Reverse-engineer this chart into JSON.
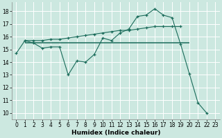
{
  "xlabel": "Humidex (Indice chaleur)",
  "bg_color": "#cce8e0",
  "line_color": "#1a6b5a",
  "grid_color": "#ffffff",
  "xlim": [
    -0.5,
    23.5
  ],
  "ylim": [
    9.5,
    18.7
  ],
  "xticks": [
    0,
    1,
    2,
    3,
    4,
    5,
    6,
    7,
    8,
    9,
    10,
    11,
    12,
    13,
    14,
    15,
    16,
    17,
    18,
    19,
    20,
    21,
    22,
    23
  ],
  "yticks": [
    10,
    11,
    12,
    13,
    14,
    15,
    16,
    17,
    18
  ],
  "series1_x": [
    0,
    1,
    2,
    3,
    4,
    5,
    6,
    7,
    8,
    9,
    10,
    11,
    12,
    13,
    14,
    15,
    16,
    17,
    18,
    19,
    20,
    21,
    22
  ],
  "series1_y": [
    14.7,
    15.7,
    15.5,
    15.1,
    15.2,
    15.2,
    13.0,
    14.1,
    14.0,
    14.6,
    15.9,
    15.7,
    16.3,
    16.6,
    17.6,
    17.7,
    18.2,
    17.7,
    17.5,
    15.4,
    13.1,
    10.8,
    10.0
  ],
  "series2_x": [
    1,
    2,
    3,
    4,
    5,
    6,
    7,
    8,
    9,
    10,
    11,
    12,
    13,
    14,
    15,
    16,
    17,
    18,
    19
  ],
  "series2_y": [
    15.7,
    15.7,
    15.7,
    15.8,
    15.8,
    15.9,
    16.0,
    16.1,
    16.2,
    16.3,
    16.4,
    16.5,
    16.5,
    16.6,
    16.7,
    16.8,
    16.8,
    16.8,
    16.8
  ],
  "hline_y": 15.5,
  "hline_x_start": 1,
  "hline_x_end": 20
}
